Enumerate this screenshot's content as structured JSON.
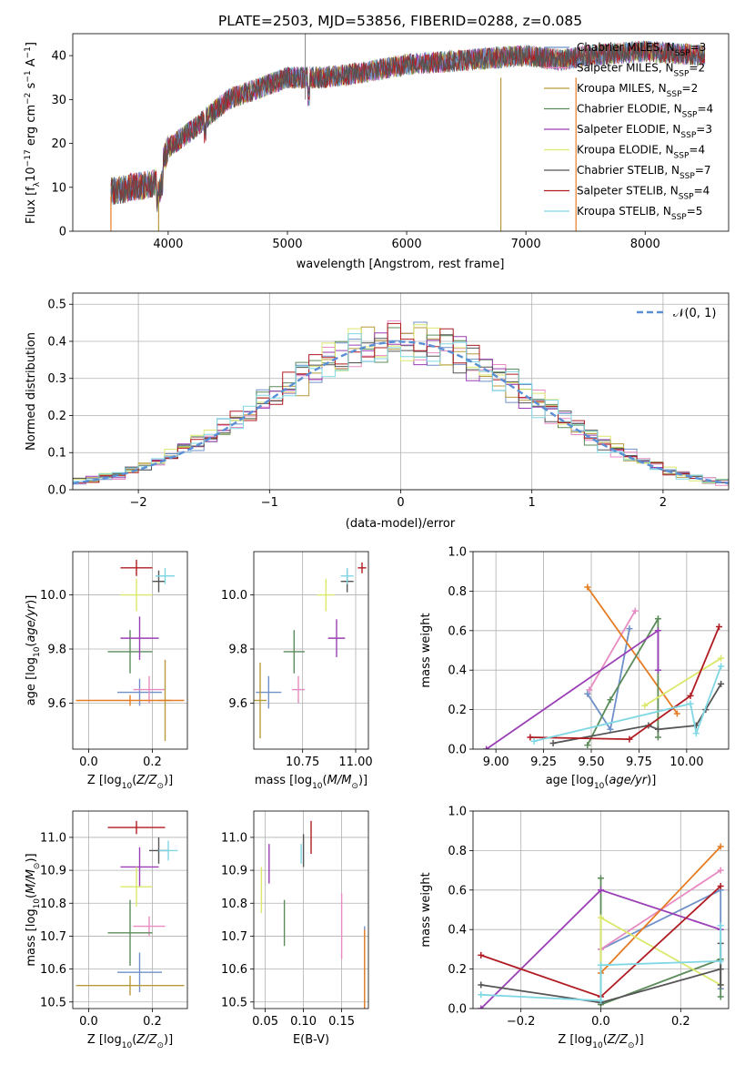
{
  "figure_title": "PLATE=2503, MJD=53856, FIBERID=0288, z=0.085",
  "colors": {
    "Chabrier MILES": "#6f90c8",
    "Salpeter MILES": "#e78bc2",
    "Kroupa MILES": "#b89a3c",
    "Chabrier ELODIE": "#5b8c5a",
    "Salpeter ELODIE": "#9a3fb5",
    "Kroupa ELODIE": "#dbe86b",
    "Chabrier STELIB": "#555555",
    "Salpeter STELIB": "#b01c22",
    "Kroupa STELIB": "#7fd7e3",
    "orange": "#e57c22",
    "normal": "#5a8fd6"
  },
  "chart_data": [
    {
      "id": "spectrum",
      "type": "line",
      "title": "PLATE=2503, MJD=53856, FIBERID=0288, z=0.085",
      "xlabel": "wavelength [Angstrom, rest frame]",
      "ylabel": "Flux [f_λ10^-17 erg cm^-2 s^-1 A^-1]",
      "xlim": [
        3200,
        8700
      ],
      "ylim": [
        0,
        45
      ],
      "xticks": [
        "4000",
        "5000",
        "6000",
        "7000",
        "8000"
      ],
      "yticks": [
        "0",
        "10",
        "20",
        "30",
        "40"
      ],
      "continuum_x": [
        3520,
        3700,
        3900,
        4000,
        4200,
        4500,
        4800,
        5000,
        5300,
        5600,
        6000,
        6500,
        7000,
        7300,
        7500,
        8000,
        8500
      ],
      "continuum_y": [
        9,
        10,
        11,
        19,
        23,
        30,
        33,
        35,
        35,
        36,
        38,
        39,
        40,
        39,
        40,
        41,
        40
      ],
      "legend": [
        "Chabrier MILES, N_SSP=3",
        "Salpeter MILES, N_SSP=2",
        "Kroupa MILES, N_SSP=2",
        "Chabrier ELODIE, N_SSP=4",
        "Salpeter ELODIE, N_SSP=3",
        "Kroupa ELODIE, N_SSP=4",
        "Chabrier STELIB, N_SSP=7",
        "Salpeter STELIB, N_SSP=4",
        "Kroupa STELIB, N_SSP=5"
      ],
      "grid": false
    },
    {
      "id": "residuals",
      "type": "histogram",
      "xlabel": "(data-model)/error",
      "ylabel": "Normed distribution",
      "xlim": [
        -2.5,
        2.5
      ],
      "ylim": [
        0,
        0.53
      ],
      "xticks": [
        "−2",
        "−1",
        "0",
        "1",
        "2"
      ],
      "yticks": [
        "0.0",
        "0.1",
        "0.2",
        "0.3",
        "0.4",
        "0.5"
      ],
      "bin_width": 0.1,
      "legend": [
        "N(0, 1)"
      ],
      "grid": true
    },
    {
      "id": "age_vs_Z",
      "type": "scatter",
      "xlabel": "Z [log10(Z/Z☉)]",
      "ylabel": "age [log10(age/yr)]",
      "xlim": [
        -0.05,
        0.31
      ],
      "ylim": [
        9.43,
        10.16
      ],
      "xticks": [
        "0.0",
        "0.2"
      ],
      "yticks": [
        "9.6",
        "9.8",
        "10.0"
      ],
      "points": [
        {
          "model": "Chabrier MILES",
          "x": 0.16,
          "xerr": 0.07,
          "y": 9.64,
          "yerr": 0.05
        },
        {
          "model": "Salpeter MILES",
          "x": 0.19,
          "xerr": 0.05,
          "y": 9.65,
          "yerr": 0.05
        },
        {
          "model": "Kroupa MILES",
          "x": 0.24,
          "xerr": 0.02,
          "y": 9.61,
          "yerr": 0.15
        },
        {
          "model": "Chabrier ELODIE",
          "x": 0.13,
          "xerr": 0.07,
          "y": 9.79,
          "yerr": 0.08
        },
        {
          "model": "Salpeter ELODIE",
          "x": 0.16,
          "xerr": 0.06,
          "y": 9.84,
          "yerr": 0.08
        },
        {
          "model": "Kroupa ELODIE",
          "x": 0.15,
          "xerr": 0.05,
          "y": 10.0,
          "yerr": 0.06
        },
        {
          "model": "Chabrier STELIB",
          "x": 0.22,
          "xerr": 0.02,
          "y": 10.05,
          "yerr": 0.04
        },
        {
          "model": "Salpeter STELIB",
          "x": 0.15,
          "xerr": 0.05,
          "y": 10.1,
          "yerr": 0.03
        },
        {
          "model": "Kroupa STELIB",
          "x": 0.24,
          "xerr": 0.03,
          "y": 10.07,
          "yerr": 0.03
        },
        {
          "model": "orange",
          "x": 0.13,
          "xerr": 0.17,
          "y": 9.61,
          "yerr": 0.02
        }
      ],
      "grid": true
    },
    {
      "id": "age_vs_mass",
      "type": "scatter",
      "xlabel": "mass [log10(M/M☉)]",
      "ylabel": "",
      "xlim": [
        10.52,
        11.06
      ],
      "ylim": [
        9.43,
        10.16
      ],
      "xticks": [
        "10.50",
        "10.75",
        "11.00"
      ],
      "yticks": [
        "9.6",
        "9.8",
        "10.0"
      ],
      "points": [
        {
          "model": "Chabrier MILES",
          "x": 10.59,
          "xerr": 0.06,
          "y": 9.64,
          "yerr": 0.06
        },
        {
          "model": "Salpeter MILES",
          "x": 10.73,
          "xerr": 0.03,
          "y": 9.65,
          "yerr": 0.05
        },
        {
          "model": "Kroupa MILES",
          "x": 10.55,
          "xerr": 0.03,
          "y": 9.61,
          "yerr": 0.14
        },
        {
          "model": "Chabrier ELODIE",
          "x": 10.71,
          "xerr": 0.05,
          "y": 9.79,
          "yerr": 0.08
        },
        {
          "model": "Salpeter ELODIE",
          "x": 10.91,
          "xerr": 0.04,
          "y": 9.84,
          "yerr": 0.07
        },
        {
          "model": "Kroupa ELODIE",
          "x": 10.86,
          "xerr": 0.04,
          "y": 10.0,
          "yerr": 0.06
        },
        {
          "model": "Chabrier STELIB",
          "x": 10.96,
          "xerr": 0.03,
          "y": 10.05,
          "yerr": 0.04
        },
        {
          "model": "Salpeter STELIB",
          "x": 11.03,
          "xerr": 0.02,
          "y": 10.1,
          "yerr": 0.02
        },
        {
          "model": "Kroupa STELIB",
          "x": 10.96,
          "xerr": 0.03,
          "y": 10.07,
          "yerr": 0.03
        }
      ],
      "grid": true
    },
    {
      "id": "massweight_vs_age",
      "type": "line",
      "xlabel": "age [log10(age/yr)]",
      "ylabel": "mass weight",
      "xlim": [
        8.88,
        10.22
      ],
      "ylim": [
        0,
        1
      ],
      "xticks": [
        "9.00",
        "9.25",
        "9.50",
        "9.75",
        "10.00"
      ],
      "yticks": [
        "0.0",
        "0.2",
        "0.4",
        "0.6",
        "0.8",
        "1.0"
      ],
      "series": [
        {
          "model": "Chabrier MILES",
          "x": [
            9.48,
            9.6,
            9.7
          ],
          "y": [
            0.28,
            0.1,
            0.61
          ]
        },
        {
          "model": "Salpeter MILES",
          "x": [
            9.49,
            9.73
          ],
          "y": [
            0.3,
            0.7
          ]
        },
        {
          "model": "orange",
          "x": [
            9.48,
            9.95
          ],
          "y": [
            0.82,
            0.18
          ]
        },
        {
          "model": "Chabrier ELODIE",
          "x": [
            9.48,
            9.6,
            9.85,
            9.85
          ],
          "y": [
            0.02,
            0.25,
            0.66,
            0.06
          ]
        },
        {
          "model": "Salpeter ELODIE",
          "x": [
            8.95,
            9.85,
            9.85
          ],
          "y": [
            0.0,
            0.6,
            0.4
          ]
        },
        {
          "model": "Kroupa ELODIE",
          "x": [
            9.78,
            10.18
          ],
          "y": [
            0.22,
            0.46
          ]
        },
        {
          "model": "Chabrier STELIB",
          "x": [
            9.3,
            9.8,
            9.85,
            10.05,
            10.1,
            10.18
          ],
          "y": [
            0.03,
            0.12,
            0.1,
            0.12,
            0.2,
            0.33
          ]
        },
        {
          "model": "Salpeter STELIB",
          "x": [
            9.18,
            9.7,
            10.02,
            10.17
          ],
          "y": [
            0.06,
            0.05,
            0.27,
            0.62
          ]
        },
        {
          "model": "Kroupa STELIB",
          "x": [
            9.2,
            10.02,
            10.05,
            10.18
          ],
          "y": [
            0.04,
            0.23,
            0.08,
            0.42
          ]
        }
      ],
      "grid": true
    },
    {
      "id": "mass_vs_Z",
      "type": "scatter",
      "xlabel": "Z [log10(Z/Z☉)]",
      "ylabel": "mass [log10(M/M☉)]",
      "xlim": [
        -0.05,
        0.31
      ],
      "ylim": [
        10.48,
        11.08
      ],
      "xticks": [
        "0.0",
        "0.2"
      ],
      "yticks": [
        "10.5",
        "10.6",
        "10.7",
        "10.8",
        "10.9",
        "11.0"
      ],
      "points": [
        {
          "model": "Chabrier MILES",
          "x": 0.16,
          "xerr": 0.07,
          "y": 10.59,
          "yerr": 0.06
        },
        {
          "model": "Salpeter MILES",
          "x": 0.19,
          "xerr": 0.05,
          "y": 10.73,
          "yerr": 0.03
        },
        {
          "model": "Kroupa MILES",
          "x": 0.13,
          "xerr": 0.17,
          "y": 10.55,
          "yerr": 0.03
        },
        {
          "model": "Chabrier ELODIE",
          "x": 0.13,
          "xerr": 0.07,
          "y": 10.71,
          "yerr": 0.1
        },
        {
          "model": "Salpeter ELODIE",
          "x": 0.16,
          "xerr": 0.06,
          "y": 10.91,
          "yerr": 0.06
        },
        {
          "model": "Kroupa ELODIE",
          "x": 0.15,
          "xerr": 0.05,
          "y": 10.85,
          "yerr": 0.06
        },
        {
          "model": "Chabrier STELIB",
          "x": 0.22,
          "xerr": 0.03,
          "y": 10.96,
          "yerr": 0.04
        },
        {
          "model": "Salpeter STELIB",
          "x": 0.15,
          "xerr": 0.09,
          "y": 11.03,
          "yerr": 0.02
        },
        {
          "model": "Kroupa STELIB",
          "x": 0.25,
          "xerr": 0.03,
          "y": 10.96,
          "yerr": 0.03
        }
      ],
      "grid": true
    },
    {
      "id": "mass_vs_EBV",
      "type": "scatter",
      "xlabel": "E(B-V)",
      "ylabel": "",
      "xlim": [
        0.035,
        0.185
      ],
      "ylim": [
        10.48,
        11.08
      ],
      "xticks": [
        "0.05",
        "0.10",
        "0.15"
      ],
      "yticks": [
        "10.5",
        "10.6",
        "10.7",
        "10.8",
        "10.9",
        "11.0"
      ],
      "points": [
        {
          "model": "Chabrier MILES",
          "x": 0.18,
          "xerr": 0.0,
          "y": 10.59,
          "yerr": 0.14
        },
        {
          "model": "Salpeter MILES",
          "x": 0.15,
          "xerr": 0.0,
          "y": 10.73,
          "yerr": 0.1
        },
        {
          "model": "orange",
          "x": 0.18,
          "xerr": 0.0,
          "y": 10.6,
          "yerr": 0.12
        },
        {
          "model": "Chabrier ELODIE",
          "x": 0.075,
          "xerr": 0.0,
          "y": 10.74,
          "yerr": 0.07
        },
        {
          "model": "Salpeter ELODIE",
          "x": 0.055,
          "xerr": 0.0,
          "y": 10.92,
          "yerr": 0.06
        },
        {
          "model": "Kroupa ELODIE",
          "x": 0.045,
          "xerr": 0.0,
          "y": 10.84,
          "yerr": 0.07
        },
        {
          "model": "Chabrier STELIB",
          "x": 0.1,
          "xerr": 0.0,
          "y": 10.96,
          "yerr": 0.05
        },
        {
          "model": "Salpeter STELIB",
          "x": 0.11,
          "xerr": 0.0,
          "y": 11.0,
          "yerr": 0.05
        },
        {
          "model": "Kroupa STELIB",
          "x": 0.097,
          "xerr": 0.0,
          "y": 10.95,
          "yerr": 0.03
        }
      ],
      "grid": true
    },
    {
      "id": "massweight_vs_Z",
      "type": "line",
      "xlabel": "Z [log10(Z/Z☉)]",
      "ylabel": "mass weight",
      "xlim": [
        -0.32,
        0.32
      ],
      "ylim": [
        0,
        1
      ],
      "xticks": [
        "−0.2",
        "0.0",
        "0.2"
      ],
      "yticks": [
        "0.0",
        "0.2",
        "0.4",
        "0.6",
        "0.8",
        "1.0"
      ],
      "series": [
        {
          "model": "Chabrier MILES",
          "x": [
            0.0,
            0.3,
            0.3
          ],
          "y": [
            0.3,
            0.6,
            0.1
          ]
        },
        {
          "model": "Salpeter MILES",
          "x": [
            0.0,
            0.3
          ],
          "y": [
            0.3,
            0.7
          ]
        },
        {
          "model": "orange",
          "x": [
            0.0,
            0.3
          ],
          "y": [
            0.18,
            0.82
          ]
        },
        {
          "model": "Chabrier ELODIE",
          "x": [
            0.0,
            0.0,
            0.3,
            0.3
          ],
          "y": [
            0.66,
            0.02,
            0.25,
            0.06
          ]
        },
        {
          "model": "Salpeter ELODIE",
          "x": [
            -0.3,
            0.0,
            0.3
          ],
          "y": [
            0.0,
            0.6,
            0.4
          ]
        },
        {
          "model": "Kroupa ELODIE",
          "x": [
            0.0,
            0.0,
            0.3
          ],
          "y": [
            0.22,
            0.46,
            0.12
          ]
        },
        {
          "model": "Chabrier STELIB",
          "x": [
            -0.3,
            0.0,
            0.3,
            0.3,
            0.3
          ],
          "y": [
            0.12,
            0.03,
            0.2,
            0.33,
            0.12
          ]
        },
        {
          "model": "Salpeter STELIB",
          "x": [
            -0.3,
            0.0,
            0.3
          ],
          "y": [
            0.27,
            0.06,
            0.62
          ]
        },
        {
          "model": "Kroupa STELIB",
          "x": [
            -0.3,
            0.0,
            0.0,
            0.3,
            0.3
          ],
          "y": [
            0.07,
            0.04,
            0.22,
            0.24,
            0.42
          ]
        }
      ],
      "grid": true
    }
  ]
}
